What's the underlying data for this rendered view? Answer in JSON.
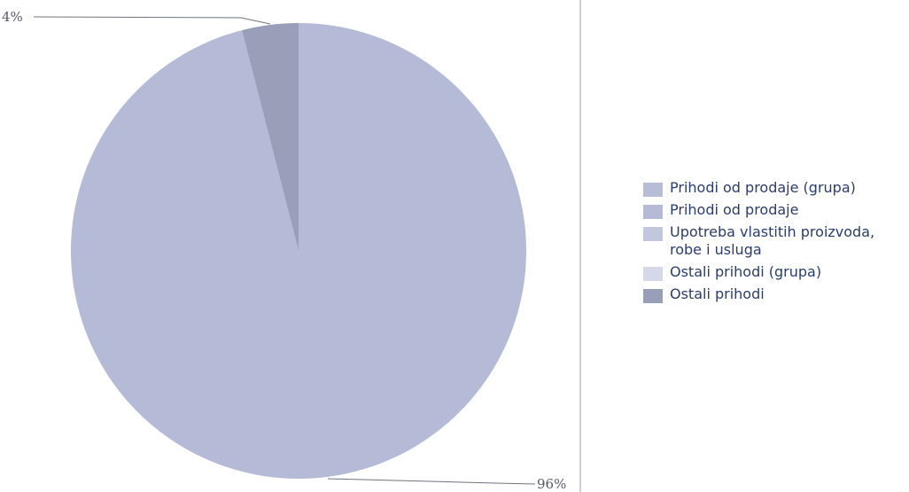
{
  "chart_data": {
    "type": "pie",
    "slices": [
      {
        "label": "Prihodi od prodaje (grupa)",
        "value": 0,
        "color": "#b7bcd7"
      },
      {
        "label": "Prihodi od prodaje",
        "value": 96,
        "color": "#b5bad6"
      },
      {
        "label": "Upotreba vlastitih proizvoda, robe i usluga",
        "value": 0,
        "color": "#c3c7de"
      },
      {
        "label": "Ostali prihodi (grupa)",
        "value": 0,
        "color": "#d5d8e8"
      },
      {
        "label": "Ostali prihodi",
        "value": 4,
        "color": "#9a9fb9"
      }
    ],
    "data_labels": [
      "4%",
      "96%"
    ],
    "legend_position": "right"
  }
}
